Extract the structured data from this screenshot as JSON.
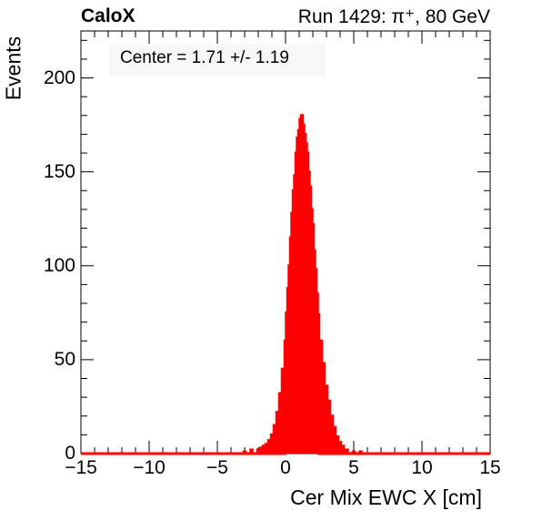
{
  "header": {
    "left_title": "CaloX",
    "right_title": "Run 1429: π⁺, 80 GeV"
  },
  "legend": {
    "text": "Center = 1.71 +/- 1.19"
  },
  "colors": {
    "series": "#ff0000",
    "frame": "#000000",
    "legend_bg": "#f8f8f8"
  },
  "chart_data": {
    "type": "histogram",
    "xlabel": "Cer Mix EWC X [cm]",
    "ylabel": "Events",
    "xlim": [
      -15,
      15
    ],
    "ylim": [
      0,
      225
    ],
    "x_ticks": [
      "−15",
      "−10",
      "−5",
      "0",
      "5",
      "10",
      "15"
    ],
    "y_ticks": [
      "0",
      "50",
      "100",
      "150",
      "200"
    ],
    "grid": false,
    "legend_position": "top-left",
    "series": [
      {
        "bin_width": 0.1,
        "x": [
          -3.0,
          -2.5,
          -2.0,
          -1.8,
          -1.6,
          -1.4,
          -1.2,
          -1.0,
          -0.8,
          -0.6,
          -0.4,
          -0.2,
          0.0,
          0.1,
          0.2,
          0.3,
          0.4,
          0.5,
          0.6,
          0.7,
          0.8,
          0.9,
          1.0,
          1.1,
          1.2,
          1.3,
          1.4,
          1.5,
          1.6,
          1.7,
          1.8,
          1.9,
          2.0,
          2.1,
          2.2,
          2.3,
          2.4,
          2.6,
          2.8,
          3.0,
          3.2,
          3.4,
          3.6,
          3.8,
          4.0,
          4.2,
          4.5,
          5.0,
          5.5
        ],
        "values": [
          1,
          2,
          2,
          3,
          4,
          5,
          7,
          10,
          15,
          22,
          32,
          45,
          60,
          75,
          88,
          100,
          115,
          128,
          140,
          148,
          160,
          168,
          172,
          178,
          180,
          175,
          170,
          165,
          160,
          150,
          142,
          130,
          122,
          108,
          98,
          85,
          74,
          60,
          48,
          36,
          28,
          20,
          14,
          9,
          6,
          4,
          2,
          1,
          1
        ]
      }
    ]
  }
}
